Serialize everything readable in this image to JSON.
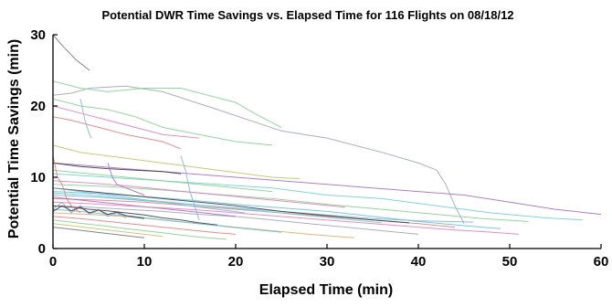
{
  "chart_data": {
    "type": "line",
    "title": "Potential DWR Time Savings vs. Elapsed Time for 116 Flights on 08/18/12",
    "xlabel": "Elapsed Time (min)",
    "ylabel": "Potential Time Savings (min)",
    "xlim": [
      0,
      60
    ],
    "ylim": [
      0,
      30
    ],
    "xticks": [
      "0",
      "10",
      "20",
      "30",
      "40",
      "50",
      "60"
    ],
    "yticks": [
      "0",
      "10",
      "20",
      "30"
    ],
    "grid": false,
    "legend": "none",
    "series": [
      {
        "color": "#9aa0b8",
        "x": [
          0,
          2,
          4,
          8,
          12,
          18,
          25,
          30,
          36,
          40,
          42
        ],
        "y": [
          21.5,
          21.8,
          22.5,
          22.8,
          22,
          19.5,
          16.5,
          15.5,
          13.5,
          12,
          11
        ]
      },
      {
        "color": "#9aa0b8",
        "x": [
          42,
          43,
          44,
          45
        ],
        "y": [
          11,
          9,
          6,
          3.5
        ]
      },
      {
        "color": "#7fd08a",
        "x": [
          0,
          3,
          6,
          10,
          14,
          17,
          20,
          22,
          25
        ],
        "y": [
          23.5,
          22.5,
          22,
          22.5,
          22.5,
          21.5,
          20.5,
          19,
          17
        ]
      },
      {
        "color": "#7fd08a",
        "x": [
          0,
          3,
          6,
          9,
          12,
          16,
          20,
          24
        ],
        "y": [
          21,
          20,
          19.5,
          18.5,
          17,
          16,
          15,
          14.5
        ]
      },
      {
        "color": "#6a707a",
        "x": [
          0,
          1,
          2.5,
          4
        ],
        "y": [
          30,
          28.5,
          26.5,
          25
        ]
      },
      {
        "color": "#e27ab7",
        "x": [
          0,
          3,
          6,
          9,
          12,
          16
        ],
        "y": [
          20,
          19,
          18,
          17,
          16,
          15.5
        ]
      },
      {
        "color": "#e07a7a",
        "x": [
          0,
          2,
          5,
          8,
          12,
          14
        ],
        "y": [
          18.5,
          18,
          17,
          16,
          15,
          14
        ]
      },
      {
        "color": "#7ab0e0",
        "x": [
          3,
          3.5,
          4,
          4.2
        ],
        "y": [
          21,
          18,
          16,
          15.5
        ]
      },
      {
        "color": "#a06ac0",
        "x": [
          0,
          5,
          10,
          15,
          20,
          25,
          30,
          35,
          40,
          45,
          50,
          55,
          60
        ],
        "y": [
          12,
          11.5,
          11,
          10.5,
          10,
          9.5,
          9,
          8.5,
          8,
          7.5,
          6.5,
          5.5,
          4.8
        ]
      },
      {
        "color": "#6ad0c8",
        "x": [
          0,
          6,
          12,
          18,
          24,
          30,
          36,
          42,
          48,
          54,
          58
        ],
        "y": [
          10.5,
          10,
          9.5,
          9,
          8.5,
          7.5,
          7,
          6,
          5,
          4.3,
          4
        ]
      },
      {
        "color": "#7fd08a",
        "x": [
          0,
          6,
          12,
          18,
          24,
          30,
          36,
          42,
          47,
          52
        ],
        "y": [
          9,
          8.7,
          8.2,
          7.6,
          7,
          6.2,
          5.5,
          4.8,
          4.2,
          3.8
        ]
      },
      {
        "color": "#5ac0e0",
        "x": [
          0,
          5,
          10,
          15,
          20,
          25,
          30,
          35,
          40,
          45,
          49
        ],
        "y": [
          8,
          7.7,
          7.3,
          6.8,
          6.2,
          5.7,
          5.2,
          4.5,
          3.8,
          3.2,
          2.8
        ]
      },
      {
        "color": "#e07a7a",
        "x": [
          0,
          5,
          10,
          15,
          20,
          25,
          30,
          35,
          40,
          44
        ],
        "y": [
          7,
          6.8,
          6.5,
          6,
          5.5,
          5,
          4.5,
          4,
          3.5,
          3
        ]
      },
      {
        "color": "#7ab0e0",
        "x": [
          0,
          5,
          10,
          15,
          20,
          25,
          30,
          35,
          40,
          46
        ],
        "y": [
          7.5,
          7.2,
          6.7,
          6.2,
          5.7,
          5.2,
          4.7,
          4.2,
          3.9,
          3.7
        ]
      },
      {
        "color": "#30343c",
        "x": [
          0,
          4,
          8,
          12,
          16,
          20,
          25,
          30,
          35,
          39
        ],
        "y": [
          8.5,
          8,
          7.5,
          7,
          6.5,
          6,
          5.2,
          4.6,
          4,
          3.6
        ]
      },
      {
        "color": "#9aa0b8",
        "x": [
          0,
          4,
          8,
          12,
          16,
          20,
          24,
          28,
          32,
          36,
          40
        ],
        "y": [
          6,
          5.8,
          5.5,
          5.2,
          4.8,
          4.5,
          4,
          3.5,
          3,
          2.5,
          2
        ]
      },
      {
        "color": "#e0a860",
        "x": [
          0,
          4,
          8,
          12,
          16,
          20,
          24,
          28,
          33
        ],
        "y": [
          5,
          4.8,
          4.5,
          4,
          3.5,
          3,
          2.5,
          2,
          1.5
        ]
      },
      {
        "color": "#c0c060",
        "x": [
          0,
          3,
          6,
          9,
          12,
          15,
          18,
          21,
          24,
          27
        ],
        "y": [
          14.5,
          13.5,
          13,
          12.5,
          12,
          11.5,
          11,
          10.5,
          10,
          9.8
        ]
      },
      {
        "color": "#30343c",
        "x": [
          0,
          3,
          6,
          9,
          12,
          14
        ],
        "y": [
          12,
          11.5,
          11.2,
          11,
          10.8,
          10.5
        ]
      },
      {
        "color": "#7fd08a",
        "x": [
          0,
          4,
          8,
          12,
          16,
          20,
          24
        ],
        "y": [
          11,
          10.5,
          10,
          9.5,
          9,
          8.5,
          8
        ]
      },
      {
        "color": "#e27ab7",
        "x": [
          0,
          4,
          8,
          12,
          16,
          20,
          24,
          28,
          32
        ],
        "y": [
          9.5,
          9.2,
          8.8,
          8.3,
          7.8,
          7.3,
          6.8,
          6.3,
          5.8
        ]
      },
      {
        "color": "#7ab0e0",
        "x": [
          0,
          3,
          6,
          9,
          12,
          15,
          18,
          21
        ],
        "y": [
          8.5,
          8,
          7.5,
          7,
          6.5,
          6,
          5.5,
          5
        ]
      },
      {
        "color": "#a06ac0",
        "x": [
          0,
          3,
          6,
          9,
          12,
          15,
          18,
          20
        ],
        "y": [
          7.2,
          6.8,
          6.4,
          6,
          5.6,
          5.2,
          4.8,
          4.5
        ]
      },
      {
        "color": "#30343c",
        "x": [
          0,
          2,
          4,
          6,
          8,
          10,
          12,
          14,
          16,
          18
        ],
        "y": [
          6,
          5.8,
          5.5,
          5.3,
          5,
          4.7,
          4.3,
          4,
          3.6,
          3.3
        ]
      },
      {
        "color": "#5ac0e0",
        "x": [
          0,
          3,
          6,
          9,
          12,
          15,
          18,
          21,
          25
        ],
        "y": [
          5.5,
          5.2,
          4.8,
          4.5,
          4,
          3.6,
          3.2,
          2.8,
          2.3
        ]
      },
      {
        "color": "#e07a7a",
        "x": [
          0,
          3,
          6,
          9,
          12,
          15,
          18,
          20
        ],
        "y": [
          4.5,
          4.2,
          3.8,
          3.4,
          3,
          2.6,
          2.2,
          2
        ]
      },
      {
        "color": "#7fd08a",
        "x": [
          0,
          2,
          4,
          6,
          8,
          10,
          12,
          14,
          16,
          19
        ],
        "y": [
          4,
          3.7,
          3.4,
          3.1,
          2.8,
          2.5,
          2.2,
          1.9,
          1.6,
          1.3
        ]
      },
      {
        "color": "#c0c060",
        "x": [
          0,
          2,
          4,
          6,
          8,
          10,
          12
        ],
        "y": [
          3.5,
          3.2,
          2.9,
          2.6,
          2.3,
          2,
          1.7
        ]
      },
      {
        "color": "#6a707a",
        "x": [
          0,
          2,
          4,
          6,
          8,
          10
        ],
        "y": [
          3,
          2.7,
          2.4,
          2.1,
          1.8,
          1.5
        ]
      },
      {
        "color": "#e27ab7",
        "x": [
          0,
          4,
          8,
          12,
          16,
          20,
          24,
          28,
          32,
          36,
          40,
          44,
          48,
          51
        ],
        "y": [
          6.5,
          6.3,
          6,
          5.7,
          5.4,
          5,
          4.6,
          4.2,
          3.8,
          3.4,
          3,
          2.6,
          2.3,
          2
        ]
      },
      {
        "color": "#6ad0c8",
        "x": [
          0,
          4,
          8,
          12,
          16,
          20,
          24,
          28,
          32,
          36
        ],
        "y": [
          7.8,
          7.5,
          7,
          6.6,
          6.1,
          5.6,
          5.1,
          4.6,
          4.1,
          3.6
        ]
      },
      {
        "color": "#9aa0b8",
        "x": [
          0,
          1,
          2,
          3,
          4,
          5,
          6,
          7,
          8
        ],
        "y": [
          5.5,
          6.5,
          5,
          6,
          4.8,
          5.5,
          4.5,
          5,
          4.3
        ]
      },
      {
        "color": "#30343c",
        "x": [
          0,
          1,
          2,
          3,
          4,
          5,
          6,
          7,
          8,
          9,
          10
        ],
        "y": [
          5.2,
          6,
          5.3,
          5.8,
          5,
          5.4,
          4.8,
          5.1,
          4.6,
          4.4,
          4.2
        ]
      },
      {
        "color": "#e07a7a",
        "x": [
          0,
          0.5,
          1,
          1.5,
          2,
          2.5,
          3
        ],
        "y": [
          13,
          10,
          9,
          7,
          6,
          5.5,
          5
        ]
      },
      {
        "color": "#7ab0e0",
        "x": [
          14,
          14.5,
          15,
          15.5,
          16
        ],
        "y": [
          13,
          11,
          8,
          6,
          4
        ]
      },
      {
        "color": "#a06ac0",
        "x": [
          6,
          6.5,
          7,
          8,
          9,
          10
        ],
        "y": [
          12,
          10,
          9,
          8.5,
          8,
          7.5
        ]
      }
    ]
  }
}
